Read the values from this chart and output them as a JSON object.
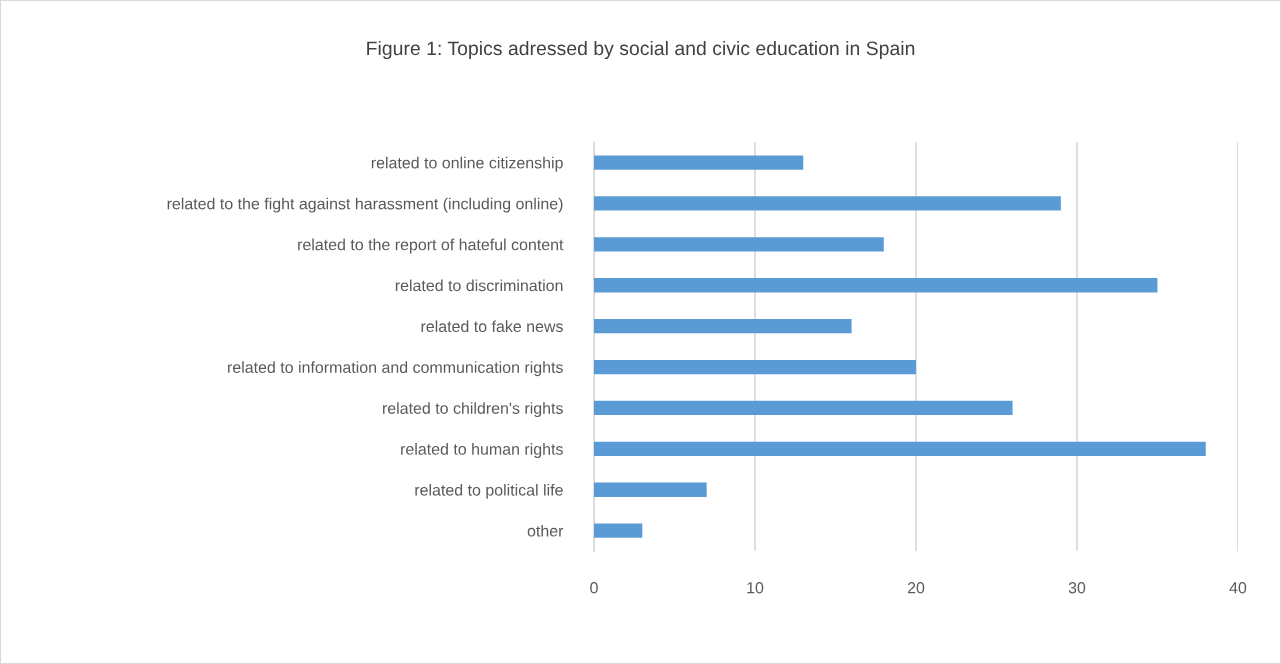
{
  "chart_data": {
    "type": "bar",
    "orientation": "horizontal",
    "title": "Figure 1: Topics adressed by social and civic education in Spain",
    "categories": [
      "related to online citizenship",
      "related to the fight against harassment (including online)",
      "related to the report of hateful content",
      "related to discrimination",
      "related to fake news",
      "related to information and communication rights",
      "related to children's rights",
      "related to human rights",
      "related to political life",
      "other"
    ],
    "values": [
      13,
      29,
      18,
      35,
      16,
      20,
      26,
      38,
      7,
      3
    ],
    "color": "#5b9bd5",
    "xlim": [
      0,
      40
    ],
    "xticks": [
      0,
      10,
      20,
      30,
      40
    ],
    "grid": "x",
    "legend": false
  }
}
